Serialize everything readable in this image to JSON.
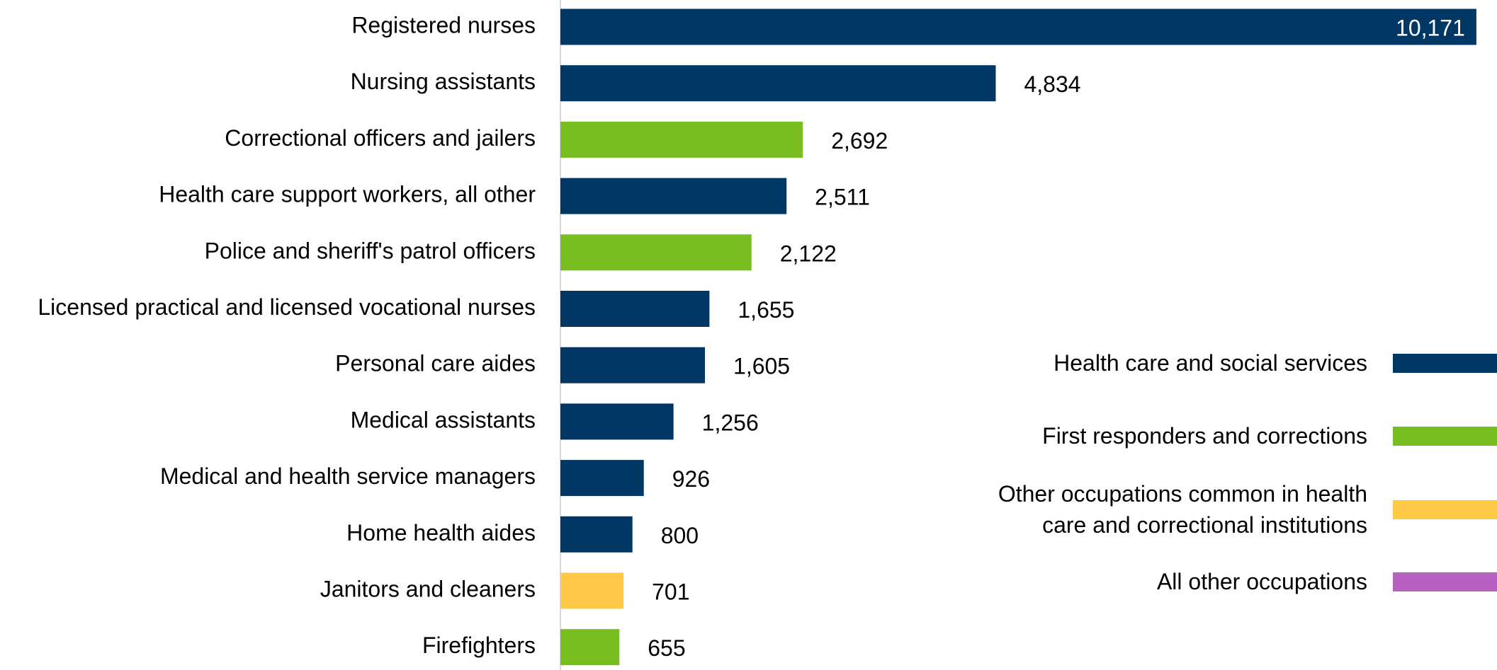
{
  "chart_data": {
    "type": "bar",
    "orientation": "horizontal",
    "categories": [
      "Registered nurses",
      "Nursing assistants",
      "Correctional officers and jailers",
      "Health care support workers, all other",
      "Police and sheriff's patrol officers",
      "Licensed practical and licensed vocational nurses",
      "Personal care aides",
      "Medical assistants",
      "Medical and health service managers",
      "Home health aides",
      "Janitors and cleaners",
      "Firefighters"
    ],
    "series": [
      {
        "name": "Health care and social services",
        "color": "#003764",
        "values": [
          10171,
          4834,
          null,
          2511,
          null,
          1655,
          1605,
          1256,
          926,
          800,
          null,
          null
        ],
        "value_labels": [
          "10,171",
          "4,834",
          null,
          "2,511",
          null,
          "1,655",
          "1,605",
          "1,256",
          "926",
          "800",
          null,
          null
        ]
      },
      {
        "name": "First responders and corrections",
        "color": "#78be20",
        "values": [
          null,
          null,
          2692,
          null,
          2122,
          null,
          null,
          null,
          null,
          null,
          null,
          655
        ],
        "value_labels": [
          null,
          null,
          "2,692",
          null,
          "2,122",
          null,
          null,
          null,
          null,
          null,
          null,
          "655"
        ]
      },
      {
        "name": "Other occupations common in health care and correctional institutions",
        "color": "#ffc846",
        "values": [
          null,
          null,
          null,
          null,
          null,
          null,
          null,
          null,
          null,
          null,
          701,
          null
        ],
        "value_labels": [
          null,
          null,
          null,
          null,
          null,
          null,
          null,
          null,
          null,
          null,
          "701",
          null
        ]
      },
      {
        "name": "All other occupations",
        "color": "#b762c0",
        "values": [
          null,
          null,
          null,
          null,
          null,
          null,
          null,
          null,
          null,
          null,
          null,
          null
        ],
        "value_labels": [
          null,
          null,
          null,
          null,
          null,
          null,
          null,
          null,
          null,
          null,
          null,
          null
        ]
      }
    ],
    "xlim": [
      0,
      10400
    ],
    "legend": "right"
  }
}
